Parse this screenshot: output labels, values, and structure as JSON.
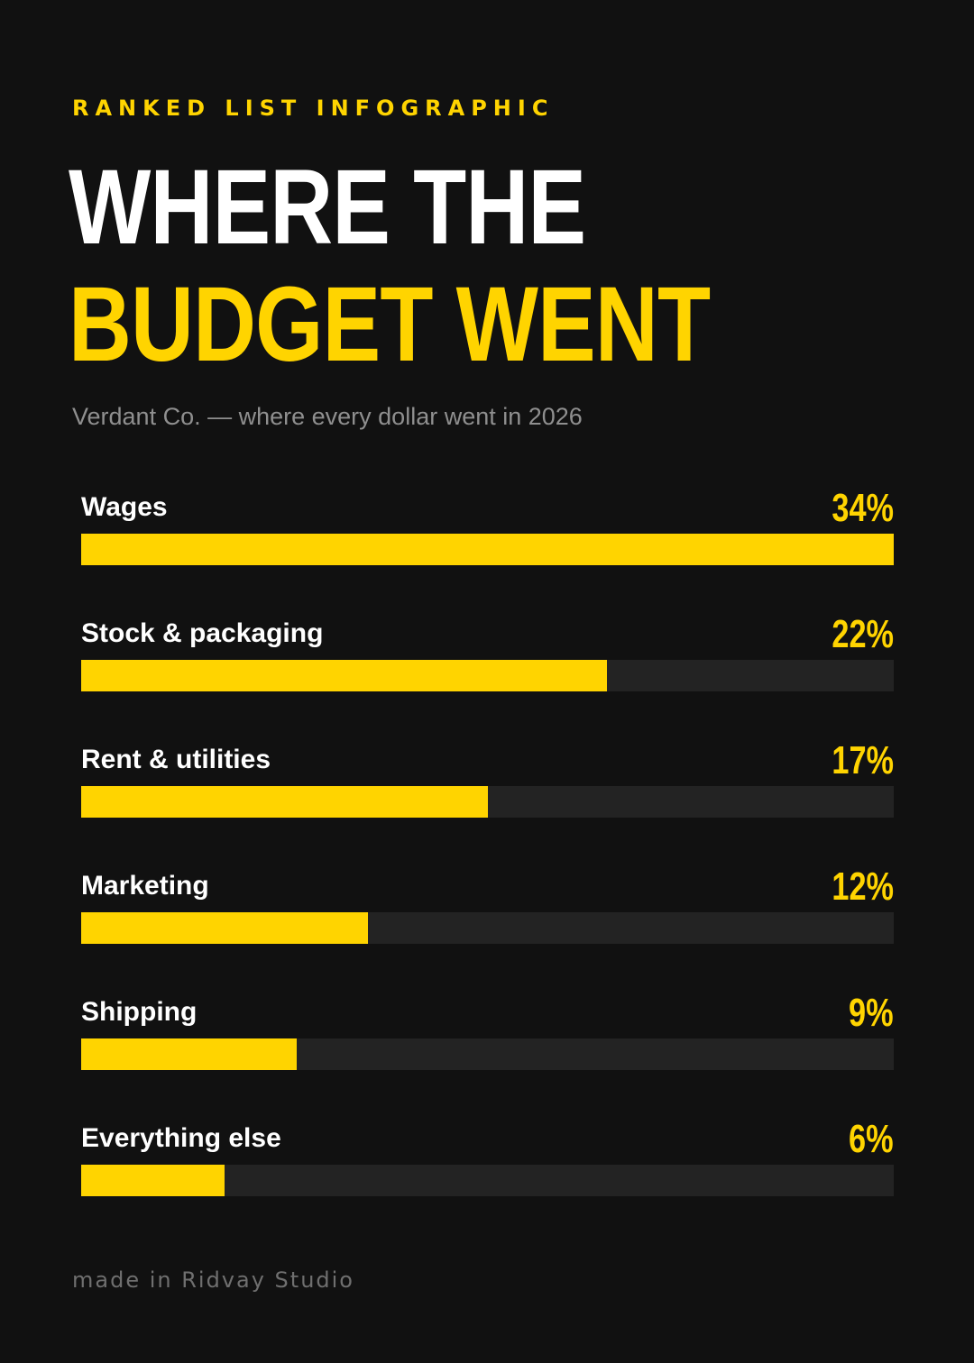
{
  "eyebrow": "RANKED LIST INFOGRAPHIC",
  "title": {
    "line1": "WHERE THE",
    "line2": "BUDGET WENT"
  },
  "subtitle": "Verdant Co. — where every dollar went in 2026",
  "footer": "made in Ridvay Studio",
  "colors": {
    "background": "#111111",
    "accent": "#ffd400",
    "track": "#232323",
    "text": "#ffffff",
    "muted": "#8f8f8f"
  },
  "chart_data": {
    "type": "bar",
    "orientation": "horizontal",
    "categories": [
      "Wages",
      "Stock & packaging",
      "Rent & utilities",
      "Marketing",
      "Shipping",
      "Everything else"
    ],
    "values": [
      34,
      22,
      17,
      12,
      9,
      6
    ],
    "value_labels": [
      "34%",
      "22%",
      "17%",
      "12%",
      "9%",
      "6%"
    ],
    "unit": "%",
    "xlim": [
      0,
      34
    ],
    "grid": false
  }
}
